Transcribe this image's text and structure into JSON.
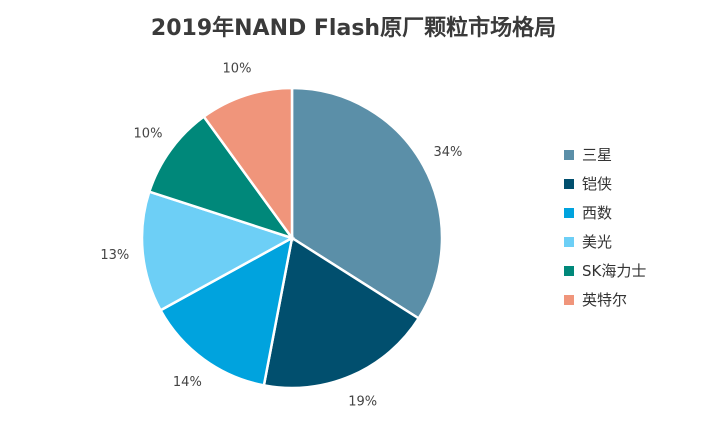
{
  "chart_data": {
    "type": "pie",
    "title": "2019年NAND Flash原厂颗粒市场格局",
    "categories": [
      "三星",
      "铠侠",
      "西数",
      "美光",
      "SK海力士",
      "英特尔"
    ],
    "values": [
      34,
      19,
      14,
      13,
      10,
      10
    ],
    "labels": [
      "34%",
      "19%",
      "14%",
      "13%",
      "10%",
      "10%"
    ],
    "colors": [
      "#5b8fa8",
      "#014f6e",
      "#00a3de",
      "#6dcff6",
      "#00887a",
      "#f0957b"
    ],
    "legend": "right"
  }
}
